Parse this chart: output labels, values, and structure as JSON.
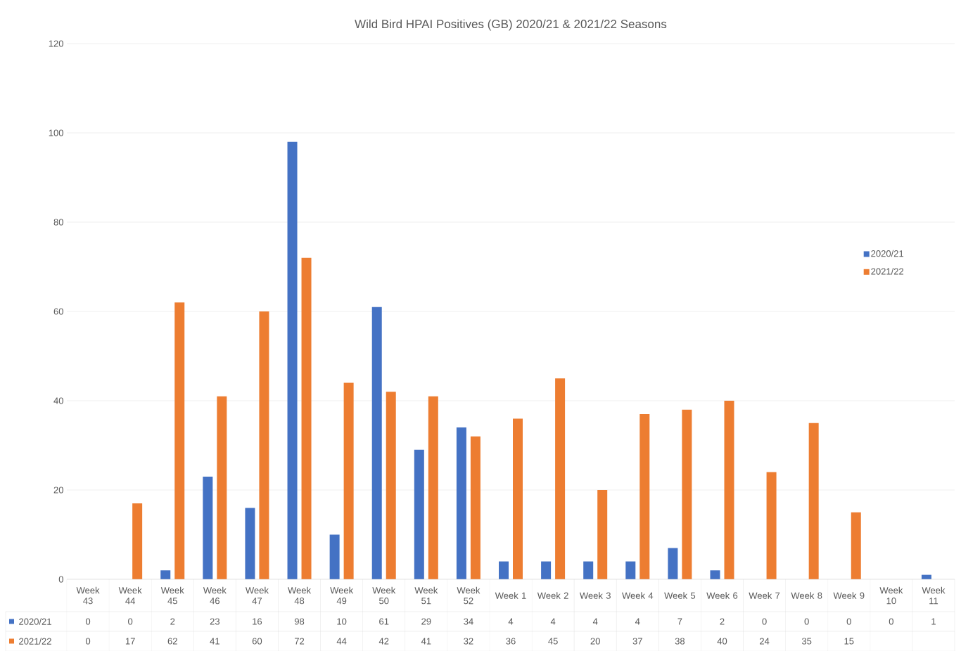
{
  "chart_data": {
    "type": "bar",
    "title": "Wild Bird HPAI Positives (GB) 2020/21 & 2021/22 Seasons",
    "categories": [
      "Week 43",
      "Week 44",
      "Week 45",
      "Week 46",
      "Week 47",
      "Week 48",
      "Week 49",
      "Week 50",
      "Week 51",
      "Week 52",
      "Week 1",
      "Week 2",
      "Week 3",
      "Week 4",
      "Week 5",
      "Week 6",
      "Week 7",
      "Week 8",
      "Week 9",
      "Week 10",
      "Week 11"
    ],
    "series": [
      {
        "name": "2020/21",
        "color": "#4472c4",
        "values": [
          0,
          0,
          2,
          23,
          16,
          98,
          10,
          61,
          29,
          34,
          4,
          4,
          4,
          4,
          7,
          2,
          0,
          0,
          0,
          0,
          1
        ]
      },
      {
        "name": "2021/22",
        "color": "#ed7d31",
        "values": [
          0,
          17,
          62,
          41,
          60,
          72,
          44,
          42,
          41,
          32,
          36,
          45,
          20,
          37,
          38,
          40,
          24,
          35,
          15,
          null,
          null
        ]
      }
    ],
    "ylim": [
      0,
      120
    ],
    "yticks": [
      0,
      20,
      40,
      60,
      80,
      100,
      120
    ],
    "grid": "y",
    "legend": "right",
    "data_labels": true
  }
}
